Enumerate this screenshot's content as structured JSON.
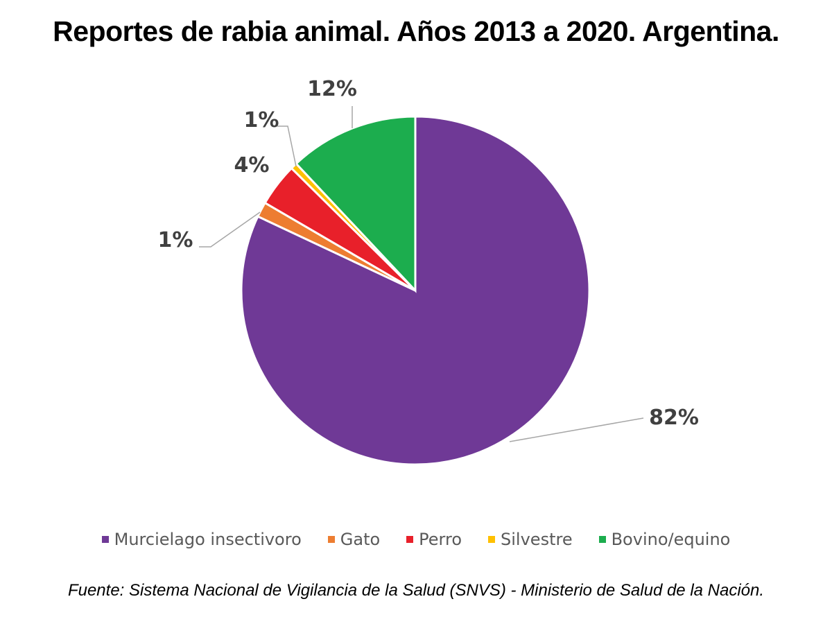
{
  "chart_data": {
    "type": "pie",
    "title": "Reportes de rabia animal. Años 2013 a 2020. Argentina.",
    "source": "Fuente: Sistema Nacional de Vigilancia de la Salud (SNVS) - Ministerio de Salud de la Nación.",
    "legend_position": "bottom",
    "slices": [
      {
        "name": "Murcielago insectivoro",
        "value": 82,
        "label": "82%",
        "color": "#6F3996"
      },
      {
        "name": "Gato",
        "value": 1.4,
        "label": "1%",
        "color": "#ED7D31"
      },
      {
        "name": "Perro",
        "value": 4,
        "label": "4%",
        "color": "#E8202A"
      },
      {
        "name": "Silvestre",
        "value": 0.6,
        "label": "1%",
        "color": "#FFC000"
      },
      {
        "name": "Bovino/equino",
        "value": 12,
        "label": "12%",
        "color": "#1CAD4E"
      }
    ]
  }
}
